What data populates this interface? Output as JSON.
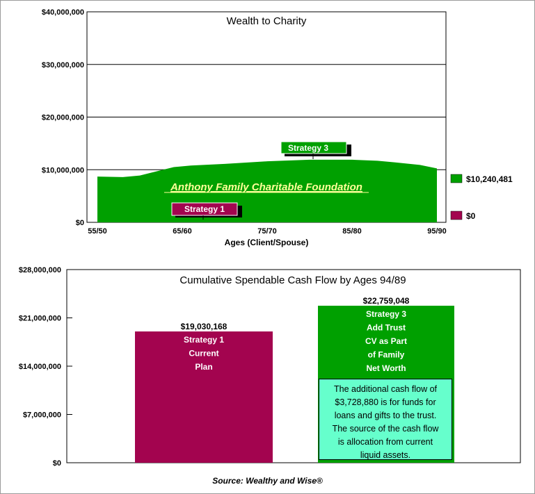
{
  "chart_data": [
    {
      "type": "area",
      "title": "Wealth to Charity",
      "xlabel": "Ages (Client/Spouse)",
      "ylabel": "",
      "ylim": [
        0,
        40000000
      ],
      "y_ticks": [
        0,
        10000000,
        20000000,
        30000000,
        40000000
      ],
      "y_tick_labels": [
        "$0",
        "$10,000,000",
        "$20,000,000",
        "$30,000,000",
        "$40,000,000"
      ],
      "x_tick_labels": [
        "55/50",
        "65/60",
        "75/70",
        "85/80",
        "95/90"
      ],
      "grid": true,
      "series": [
        {
          "name": "$10,240,481",
          "color": "#00a000",
          "ages": [
            55,
            58,
            60,
            62,
            64,
            66,
            70,
            75,
            80,
            85,
            88,
            90,
            93,
            95
          ],
          "values": [
            8700000,
            8600000,
            8900000,
            9700000,
            10500000,
            10800000,
            11100000,
            11600000,
            11900000,
            11900000,
            11700000,
            11400000,
            10900000,
            10240481
          ]
        },
        {
          "name": "$0",
          "color": "#a3044f",
          "ages": [
            55,
            95
          ],
          "values": [
            0,
            0
          ]
        }
      ],
      "callouts": [
        {
          "label": "Strategy 3",
          "color": "#00a000",
          "age": 80
        },
        {
          "label": "Strategy 1",
          "color": "#a3044f",
          "age": 65
        }
      ],
      "area_label": "Anthony Family Charitable Foundation"
    },
    {
      "type": "bar",
      "title": "Cumulative Spendable Cash Flow by Ages 94/89",
      "ylim": [
        0,
        28000000
      ],
      "y_ticks": [
        0,
        7000000,
        14000000,
        21000000,
        28000000
      ],
      "y_tick_labels": [
        "$0",
        "$7,000,000",
        "$14,000,000",
        "$21,000,000",
        "$28,000,000"
      ],
      "categories": [
        "Strategy 1",
        "Strategy 3"
      ],
      "values": [
        19030168,
        22759048
      ],
      "value_labels": [
        "$19,030,168",
        "$22,759,048"
      ],
      "colors": [
        "#a3044f",
        "#00a000"
      ],
      "bar_text": [
        [
          "Strategy 1",
          "Current",
          "Plan"
        ],
        [
          "Strategy 3",
          "Add Trust",
          "CV as Part",
          "of Family",
          "Net Worth"
        ]
      ]
    }
  ],
  "note_lines": [
    "The additional cash flow of",
    "$3,728,880 is for funds for",
    "loans and gifts to the trust.",
    "The source of the cash flow",
    "is allocation from current",
    "liquid assets."
  ],
  "source": "Source: Wealthy and Wise®"
}
